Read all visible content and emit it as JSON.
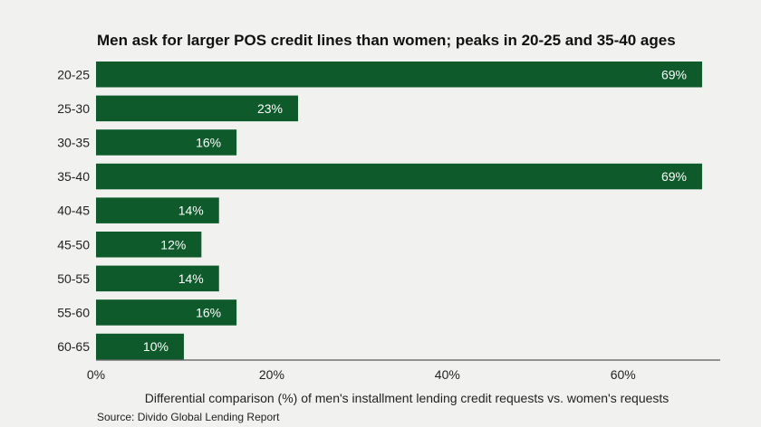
{
  "chart_data": {
    "type": "bar",
    "orientation": "horizontal",
    "title": "Men ask for larger POS credit lines than women; peaks in 20-25 and 35-40 ages",
    "categories": [
      "20-25",
      "25-30",
      "30-35",
      "35-40",
      "40-45",
      "45-50",
      "50-55",
      "55-60",
      "60-65"
    ],
    "values": [
      69,
      23,
      16,
      69,
      14,
      12,
      14,
      16,
      10
    ],
    "value_labels": [
      "69%",
      "23%",
      "16%",
      "69%",
      "14%",
      "12%",
      "14%",
      "16%",
      "10%"
    ],
    "xlabel": "Differential comparison (%) of men's installment lending credit requests vs. women's requests",
    "ylabel": "",
    "xlim": [
      0,
      70
    ],
    "ticks": [
      0,
      20,
      40,
      60
    ],
    "tick_labels": [
      "0%",
      "20%",
      "40%",
      "60%"
    ],
    "grid": false,
    "source": "Source: Divido Global Lending Report",
    "colors": {
      "bar": "#0e5a2b",
      "background": "#f1f2f0",
      "axis": "#333333"
    }
  }
}
